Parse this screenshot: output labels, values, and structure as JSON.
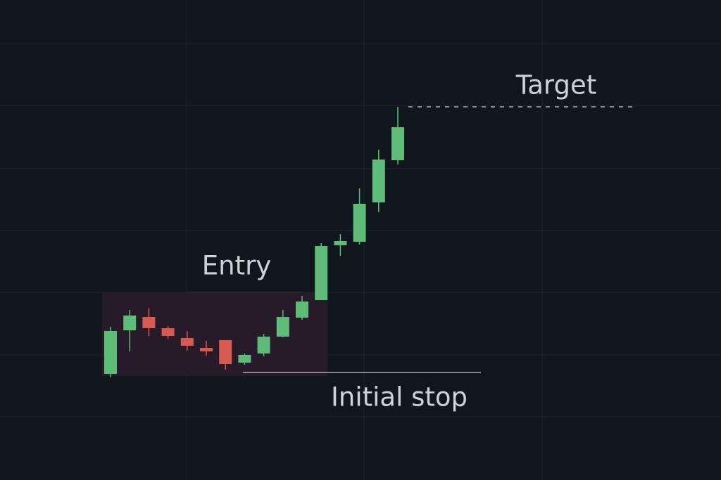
{
  "chart_data": {
    "type": "candlestick",
    "categories": [
      null,
      null,
      null,
      null,
      null,
      null,
      null,
      null,
      null,
      null,
      null,
      null,
      null,
      null,
      null,
      null
    ],
    "open": [
      151,
      213,
      232,
      216,
      202,
      188,
      199,
      167,
      180,
      204,
      231,
      256,
      334,
      339,
      395,
      455
    ],
    "high": [
      218,
      242,
      245,
      219,
      212,
      198,
      199,
      180,
      208,
      242,
      262,
      337,
      350,
      415,
      470,
      531
    ],
    "low": [
      146,
      183,
      205,
      201,
      184,
      177,
      157,
      164,
      176,
      203,
      228,
      256,
      319,
      335,
      381,
      449
    ],
    "close": [
      212,
      234,
      216,
      205,
      191,
      183,
      165,
      178,
      204,
      232,
      254,
      333,
      340,
      393,
      456,
      502
    ],
    "up_color": "#5fbb78",
    "down_color": "#d65a52",
    "ylim": [
      0,
      683
    ],
    "grid": true,
    "annotations": {
      "target": {
        "label": "Target",
        "value": 531
      },
      "entry": {
        "label": "Entry",
        "low": 148,
        "high": 267
      },
      "stop": {
        "label": "Initial stop",
        "value": 153
      }
    }
  }
}
